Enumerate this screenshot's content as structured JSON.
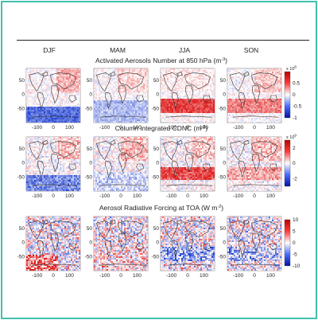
{
  "chart_data": {
    "type": "heatmap",
    "columns": [
      "DJF",
      "MAM",
      "JJA",
      "SON"
    ],
    "x_ticks": [
      "-100",
      "0",
      "100"
    ],
    "y_ticks": [
      "50",
      "0",
      "-50"
    ],
    "rows": [
      {
        "title_main": "Activated Aerosols Number at 850 hPa (m",
        "title_sup": "-3",
        "title_close": ")",
        "colorbar_ticks": [
          "0.5",
          "0",
          "-0.5",
          "-1"
        ],
        "colorbar_multiplier": "x 10",
        "colorbar_exponent": "8",
        "range": [
          -1,
          1
        ]
      },
      {
        "title_main": "Column integrated CDNC (m",
        "title_sup": "-2",
        "title_close": ")",
        "colorbar_ticks": [
          "2",
          "0",
          "-2"
        ],
        "colorbar_multiplier": "x 10",
        "colorbar_exponent": "9",
        "range": [
          -3,
          3
        ]
      },
      {
        "title_main": "Aerosol Radiative Forcing at TOA (W m",
        "title_sup": "-2",
        "title_close": ")",
        "colorbar_ticks": [
          "10",
          "5",
          "0",
          "-5",
          "-10"
        ],
        "colorbar_multiplier": "",
        "colorbar_exponent": "",
        "range": [
          -10,
          10
        ]
      }
    ],
    "colors": {
      "positive": "#e02020",
      "negative": "#1e3fd0",
      "neutral": "#ffffff",
      "coast": "#333333"
    }
  }
}
